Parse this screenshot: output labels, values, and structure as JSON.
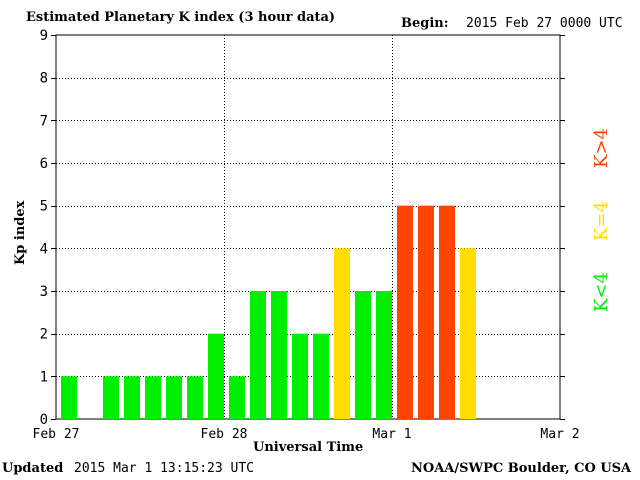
{
  "header": {
    "title": "Estimated Planetary K index (3 hour data)",
    "begin_label": "Begin:",
    "begin_value": "2015 Feb 27 0000 UTC"
  },
  "footer": {
    "updated_label": "Updated",
    "updated_value": "2015 Mar  1 13:15:23 UTC",
    "source": "NOAA/SWPC Boulder, CO USA"
  },
  "legend": {
    "low": "K<4",
    "equal": "K=4",
    "high": "K>4"
  },
  "colors": {
    "low": "#00ee00",
    "equal": "#ffdd00",
    "high": "#ff4400"
  },
  "chart_data": {
    "type": "bar",
    "title": "Estimated Planetary K index (3 hour data)",
    "xlabel": "Universal Time",
    "ylabel": "Kp index",
    "ylim": [
      0,
      9
    ],
    "yticks": [
      "0",
      "1",
      "2",
      "3",
      "4",
      "5",
      "6",
      "7",
      "8",
      "9"
    ],
    "xticks": [
      "Feb 27",
      "Feb 28",
      "Mar 1",
      "Mar 2"
    ],
    "grid": true,
    "categories": [
      "Feb 27 00",
      "Feb 27 03",
      "Feb 27 06",
      "Feb 27 09",
      "Feb 27 12",
      "Feb 27 15",
      "Feb 27 18",
      "Feb 27 21",
      "Feb 28 00",
      "Feb 28 03",
      "Feb 28 06",
      "Feb 28 09",
      "Feb 28 12",
      "Feb 28 15",
      "Feb 28 18",
      "Feb 28 21",
      "Mar 1 00",
      "Mar 1 03",
      "Mar 1 06",
      "Mar 1 09"
    ],
    "values": [
      1,
      null,
      1,
      1,
      1,
      1,
      1,
      2,
      1,
      3,
      3,
      2,
      2,
      4,
      3,
      3,
      5,
      5,
      5,
      4
    ]
  }
}
